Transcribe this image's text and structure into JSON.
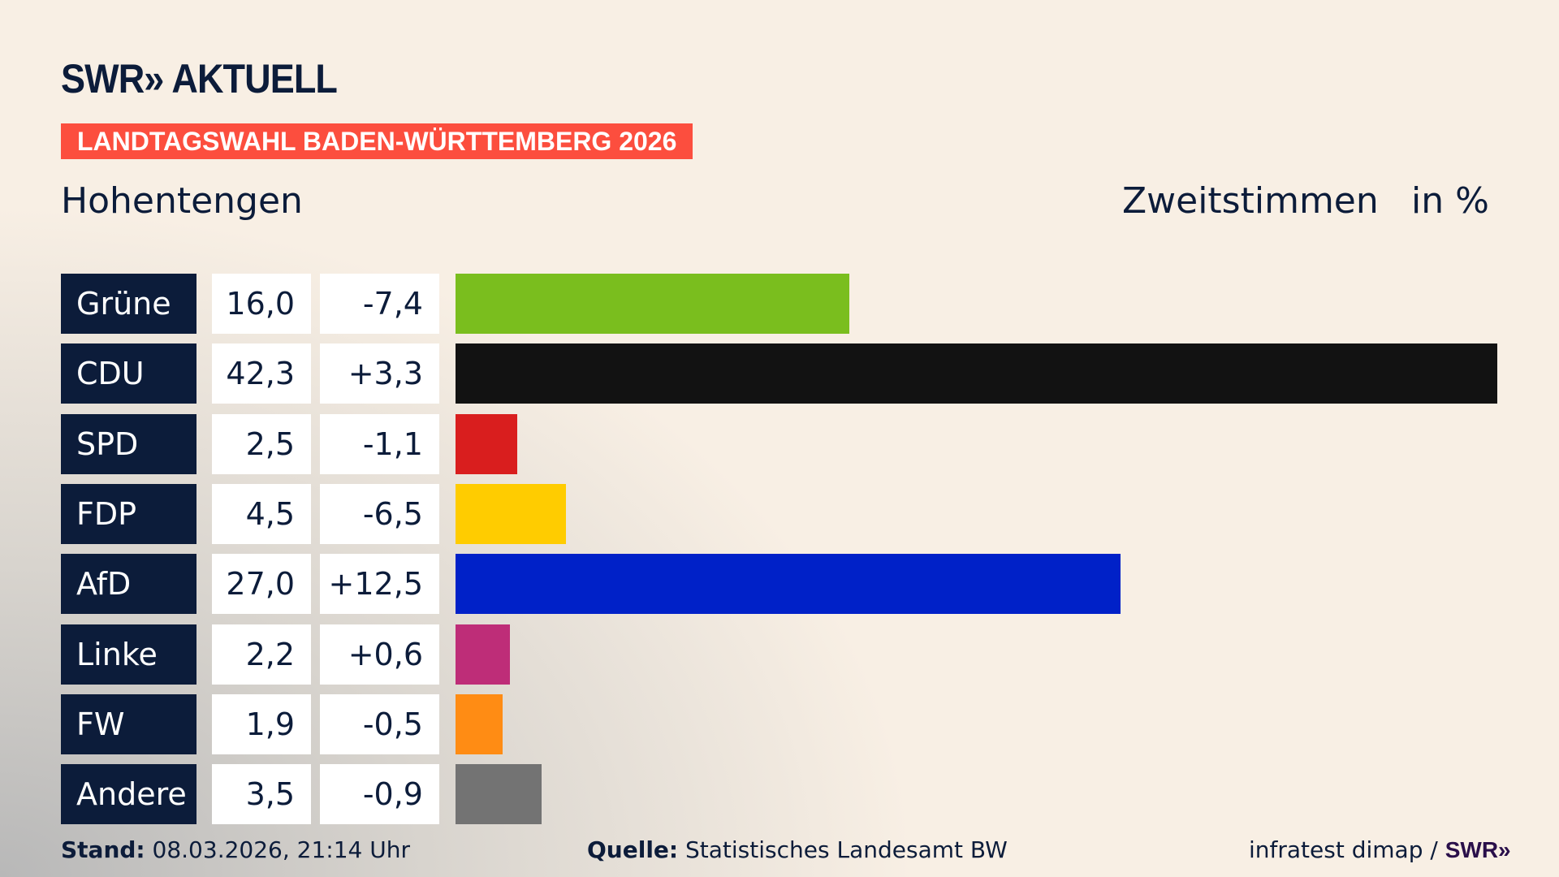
{
  "header": {
    "logo": "SWR» AKTUELL",
    "banner": "LANDTAGSWAHL BADEN-WÜRTTEMBERG 2026",
    "place": "Hohentengen",
    "vote_type": "Zweitstimmen",
    "unit": "in %"
  },
  "chart_data": {
    "type": "bar",
    "orientation": "horizontal",
    "categories": [
      "Grüne",
      "CDU",
      "SPD",
      "FDP",
      "AfD",
      "Linke",
      "FW",
      "Andere"
    ],
    "values": [
      16.0,
      42.3,
      2.5,
      4.5,
      27.0,
      2.2,
      1.9,
      3.5
    ],
    "value_labels": [
      "16,0",
      "42,3",
      "2,5",
      "4,5",
      "27,0",
      "2,2",
      "1,9",
      "3,5"
    ],
    "change_labels": [
      "-7,4",
      "+3,3",
      "-1,1",
      "-6,5",
      "+12,5",
      "+0,6",
      "-0,5",
      "-0,9"
    ],
    "colors": [
      "#7abe1e",
      "#121212",
      "#d91e1e",
      "#ffcc00",
      "#0021c8",
      "#be2d78",
      "#ff8c14",
      "#737373"
    ],
    "ylabel": "in %"
  },
  "footer": {
    "stand_label": "Stand:",
    "stand_value": "08.03.2026, 21:14 Uhr",
    "source_label": "Quelle:",
    "source_value": "Statistisches Landesamt BW",
    "credit": "infratest dimap /",
    "credit_logo": "SWR»"
  }
}
